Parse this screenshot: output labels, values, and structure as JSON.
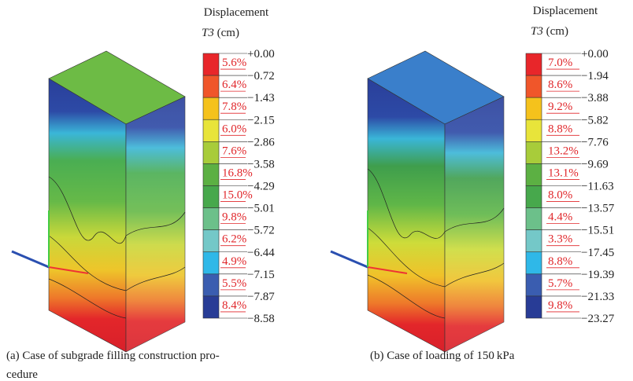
{
  "panels": [
    {
      "legend": {
        "title": "Displacement",
        "var": "T3",
        "unit": "(cm)",
        "ticks": [
          "+0.00",
          "−0.72",
          "−1.43",
          "−2.15",
          "−2.86",
          "−3.58",
          "−4.29",
          "−5.01",
          "−5.72",
          "−6.44",
          "−7.15",
          "−7.87",
          "−8.58"
        ],
        "percents": [
          "5.6%",
          "6.4%",
          "7.8%",
          "6.0%",
          "7.6%",
          "16.8%",
          "15.0%",
          "9.8%",
          "6.2%",
          "4.9%",
          "5.5%",
          "8.4%"
        ]
      },
      "caption": [
        "(a)  Case of subgrade filling construction pro-",
        "cedure"
      ]
    },
    {
      "legend": {
        "title": "Displacement",
        "var": "T3",
        "unit": "(cm)",
        "ticks": [
          "+0.00",
          "−1.94",
          "−3.88",
          "−5.82",
          "−7.76",
          "−9.69",
          "−11.63",
          "−13.57",
          "−15.51",
          "−17.45",
          "−19.39",
          "−21.33",
          "−23.27"
        ],
        "percents": [
          "7.0%",
          "8.6%",
          "9.2%",
          "8.8%",
          "13.2%",
          "13.1%",
          "8.0%",
          "4.4%",
          "3.3%",
          "8.8%",
          "5.7%",
          "9.8%"
        ]
      },
      "caption": [
        "(b)  Case of loading of 150 kPa"
      ]
    }
  ]
}
